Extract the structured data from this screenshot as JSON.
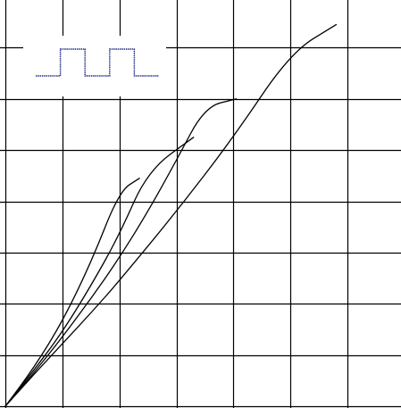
{
  "diagram": {
    "type": "line",
    "grid": {
      "columns": 7,
      "rows": 8,
      "visible": true
    },
    "colors": {
      "background": "#ffffff",
      "grid": "#000000",
      "curve": "#000000",
      "inset_wave": "#1f2a8a"
    },
    "inset": {
      "name": "square-wave",
      "placement": "top-left",
      "levels": [
        0,
        1,
        0,
        1,
        0
      ],
      "stroke_style": "dotted"
    },
    "chart_data": {
      "type": "line",
      "title": "",
      "xlabel": "",
      "ylabel": "",
      "x_range": [
        0,
        7
      ],
      "y_range": [
        0,
        8
      ],
      "grid": true,
      "series": [
        {
          "points": [
            [
              0,
              0
            ],
            [
              0.5,
              0.75
            ],
            [
              1,
              1.65
            ],
            [
              1.5,
              2.8
            ],
            [
              2,
              4.2
            ],
            [
              2.35,
              4.45
            ]
          ]
        },
        {
          "points": [
            [
              0,
              0
            ],
            [
              0.5,
              0.7
            ],
            [
              1,
              1.45
            ],
            [
              1.5,
              2.35
            ],
            [
              2,
              3.35
            ],
            [
              2.5,
              4.6
            ],
            [
              3.3,
              5.25
            ]
          ]
        },
        {
          "points": [
            [
              0,
              0
            ],
            [
              0.5,
              0.65
            ],
            [
              1,
              1.35
            ],
            [
              1.5,
              2.1
            ],
            [
              2,
              2.9
            ],
            [
              2.5,
              3.8
            ],
            [
              3,
              4.8
            ],
            [
              3.5,
              5.85
            ],
            [
              4.05,
              6.0
            ]
          ]
        },
        {
          "points": [
            [
              0,
              0
            ],
            [
              0.5,
              0.62
            ],
            [
              1,
              1.22
            ],
            [
              1.5,
              1.82
            ],
            [
              2,
              2.45
            ],
            [
              3,
              3.8
            ],
            [
              4,
              5.25
            ],
            [
              5,
              6.9
            ],
            [
              5.8,
              7.45
            ]
          ]
        }
      ]
    }
  }
}
